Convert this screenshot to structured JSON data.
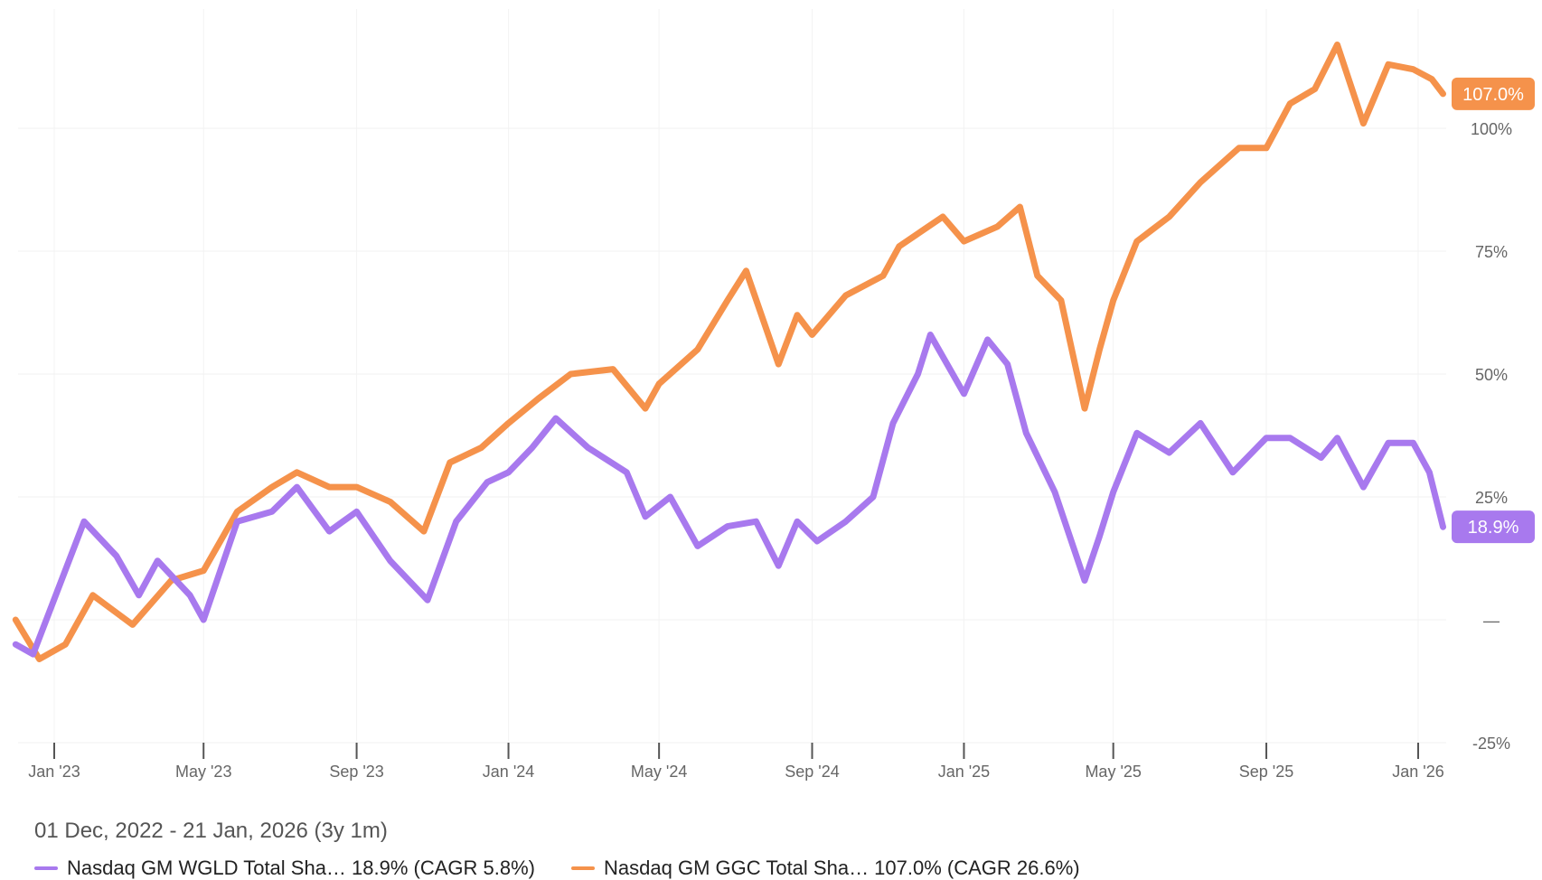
{
  "chart_data": {
    "type": "line",
    "title": "",
    "xlabel": "",
    "ylabel": "",
    "ylim": [
      -25,
      115
    ],
    "grid": true,
    "y_ticks": [
      {
        "v": 100,
        "label": "100%"
      },
      {
        "v": 75,
        "label": "75%"
      },
      {
        "v": 50,
        "label": "50%"
      },
      {
        "v": 25,
        "label": "25%"
      },
      {
        "v": 0,
        "label": "—"
      },
      {
        "v": -25,
        "label": "-25%"
      }
    ],
    "x_ticks": [
      {
        "date": "2023-01-01",
        "label": "Jan '23"
      },
      {
        "date": "2023-05-01",
        "label": "May '23"
      },
      {
        "date": "2023-09-01",
        "label": "Sep '23"
      },
      {
        "date": "2024-01-01",
        "label": "Jan '24"
      },
      {
        "date": "2024-05-01",
        "label": "May '24"
      },
      {
        "date": "2024-09-01",
        "label": "Sep '24"
      },
      {
        "date": "2025-01-01",
        "label": "Jan '25"
      },
      {
        "date": "2025-05-01",
        "label": "May '25"
      },
      {
        "date": "2025-09-01",
        "label": "Sep '25"
      },
      {
        "date": "2026-01-01",
        "label": "Jan '26"
      }
    ],
    "series": [
      {
        "name": "orange",
        "color": "#f5924b",
        "end_label": "107.0%",
        "points": [
          [
            "2022-12-01",
            0
          ],
          [
            "2022-12-20",
            -8
          ],
          [
            "2023-01-10",
            -5
          ],
          [
            "2023-02-01",
            5
          ],
          [
            "2023-03-05",
            -1
          ],
          [
            "2023-04-05",
            8
          ],
          [
            "2023-05-01",
            10
          ],
          [
            "2023-05-28",
            22
          ],
          [
            "2023-06-25",
            27
          ],
          [
            "2023-07-15",
            30
          ],
          [
            "2023-08-10",
            27
          ],
          [
            "2023-09-01",
            27
          ],
          [
            "2023-09-28",
            24
          ],
          [
            "2023-10-25",
            18
          ],
          [
            "2023-11-15",
            32
          ],
          [
            "2023-12-10",
            35
          ],
          [
            "2024-01-01",
            40
          ],
          [
            "2024-01-25",
            45
          ],
          [
            "2024-02-20",
            50
          ],
          [
            "2024-03-25",
            51
          ],
          [
            "2024-04-20",
            43
          ],
          [
            "2024-05-01",
            48
          ],
          [
            "2024-06-01",
            55
          ],
          [
            "2024-06-25",
            65
          ],
          [
            "2024-07-10",
            71
          ],
          [
            "2024-08-05",
            52
          ],
          [
            "2024-08-20",
            62
          ],
          [
            "2024-09-01",
            58
          ],
          [
            "2024-09-28",
            66
          ],
          [
            "2024-10-28",
            70
          ],
          [
            "2024-11-10",
            76
          ],
          [
            "2024-12-15",
            82
          ],
          [
            "2025-01-01",
            77
          ],
          [
            "2025-01-28",
            80
          ],
          [
            "2025-02-15",
            84
          ],
          [
            "2025-03-01",
            70
          ],
          [
            "2025-03-20",
            65
          ],
          [
            "2025-04-08",
            43
          ],
          [
            "2025-04-20",
            55
          ],
          [
            "2025-05-01",
            65
          ],
          [
            "2025-05-20",
            77
          ],
          [
            "2025-06-15",
            82
          ],
          [
            "2025-07-10",
            89
          ],
          [
            "2025-08-10",
            96
          ],
          [
            "2025-09-01",
            96
          ],
          [
            "2025-09-20",
            105
          ],
          [
            "2025-10-10",
            108
          ],
          [
            "2025-10-28",
            117
          ],
          [
            "2025-11-18",
            101
          ],
          [
            "2025-12-08",
            113
          ],
          [
            "2025-12-28",
            112
          ],
          [
            "2026-01-12",
            110
          ],
          [
            "2026-01-21",
            107
          ]
        ]
      },
      {
        "name": "purple",
        "color": "#a879ee",
        "end_label": "18.9%",
        "points": [
          [
            "2022-12-01",
            -5
          ],
          [
            "2022-12-15",
            -7
          ],
          [
            "2023-01-25",
            20
          ],
          [
            "2023-02-20",
            13
          ],
          [
            "2023-03-10",
            5
          ],
          [
            "2023-03-25",
            12
          ],
          [
            "2023-04-20",
            5
          ],
          [
            "2023-05-01",
            0
          ],
          [
            "2023-05-28",
            20
          ],
          [
            "2023-06-25",
            22
          ],
          [
            "2023-07-15",
            27
          ],
          [
            "2023-08-10",
            18
          ],
          [
            "2023-09-01",
            22
          ],
          [
            "2023-09-28",
            12
          ],
          [
            "2023-10-28",
            4
          ],
          [
            "2023-11-20",
            20
          ],
          [
            "2023-12-15",
            28
          ],
          [
            "2024-01-01",
            30
          ],
          [
            "2024-01-20",
            35
          ],
          [
            "2024-02-08",
            41
          ],
          [
            "2024-03-05",
            35
          ],
          [
            "2024-04-05",
            30
          ],
          [
            "2024-04-20",
            21
          ],
          [
            "2024-05-10",
            25
          ],
          [
            "2024-06-01",
            15
          ],
          [
            "2024-06-25",
            19
          ],
          [
            "2024-07-18",
            20
          ],
          [
            "2024-08-05",
            11
          ],
          [
            "2024-08-20",
            20
          ],
          [
            "2024-09-05",
            16
          ],
          [
            "2024-09-28",
            20
          ],
          [
            "2024-10-20",
            25
          ],
          [
            "2024-11-05",
            40
          ],
          [
            "2024-11-25",
            50
          ],
          [
            "2024-12-05",
            58
          ],
          [
            "2025-01-01",
            46
          ],
          [
            "2025-01-20",
            57
          ],
          [
            "2025-02-05",
            52
          ],
          [
            "2025-02-20",
            38
          ],
          [
            "2025-03-15",
            26
          ],
          [
            "2025-04-08",
            8
          ],
          [
            "2025-04-20",
            17
          ],
          [
            "2025-05-01",
            26
          ],
          [
            "2025-05-20",
            38
          ],
          [
            "2025-06-15",
            34
          ],
          [
            "2025-07-10",
            40
          ],
          [
            "2025-08-05",
            30
          ],
          [
            "2025-09-01",
            37
          ],
          [
            "2025-09-20",
            37
          ],
          [
            "2025-10-15",
            33
          ],
          [
            "2025-10-28",
            37
          ],
          [
            "2025-11-18",
            27
          ],
          [
            "2025-12-08",
            36
          ],
          [
            "2025-12-28",
            36
          ],
          [
            "2026-01-10",
            30
          ],
          [
            "2026-01-21",
            18.9
          ]
        ]
      }
    ],
    "date_range": "01 Dec, 2022 - 21 Jan, 2026 (3y 1m)",
    "legend": [
      "Nasdaq GM WGLD Total Sha… 18.9% (CAGR 5.8%)",
      "Nasdaq GM GGC Total Sha… 107.0% (CAGR 26.6%)"
    ]
  }
}
